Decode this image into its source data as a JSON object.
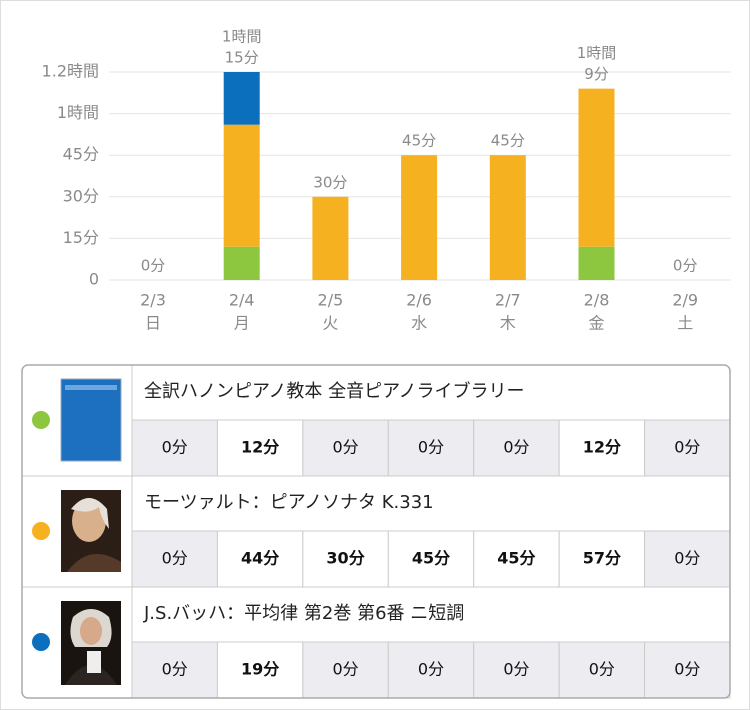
{
  "chart_data": {
    "type": "stacked_bar",
    "categories": [
      "2/3",
      "2/4",
      "2/5",
      "2/6",
      "2/7",
      "2/8",
      "2/9"
    ],
    "weekdays": [
      "日",
      "月",
      "火",
      "水",
      "木",
      "金",
      "土"
    ],
    "ylim": [
      0,
      75
    ],
    "yticks": [
      0,
      {
        "value": 15,
        "label": "15分"
      },
      {
        "value": 30,
        "label": "30分"
      },
      {
        "value": 45,
        "label": "45分"
      },
      {
        "value": 60,
        "label": "1時間"
      },
      {
        "value": 75,
        "label": "1.2時間"
      }
    ],
    "grid": true,
    "series": [
      {
        "name": "全訳ハノンピアノ教本  全音ピアノライブラリー",
        "color": "#8dc63f",
        "values": [
          0,
          12,
          0,
          0,
          0,
          12,
          0
        ],
        "value_labels": [
          "0分",
          "12分",
          "0分",
          "0分",
          "0分",
          "12分",
          "0分"
        ]
      },
      {
        "name": "モーツァルト：ピアノソナタ K.331",
        "color": "#f5b120",
        "values": [
          0,
          44,
          30,
          45,
          45,
          57,
          0
        ],
        "value_labels": [
          "0分",
          "44分",
          "30分",
          "45分",
          "45分",
          "57分",
          "0分"
        ]
      },
      {
        "name": "J.S.バッハ：平均律 第2巻 第6番 ニ短調",
        "color": "#0b6fbd",
        "values": [
          0,
          19,
          0,
          0,
          0,
          0,
          0
        ],
        "value_labels": [
          "0分",
          "19分",
          "0分",
          "0分",
          "0分",
          "0分",
          "0分"
        ]
      }
    ],
    "totals": {
      "values": [
        0,
        75,
        30,
        45,
        45,
        69,
        0
      ],
      "value_labels": [
        [
          "0分"
        ],
        [
          "1時間",
          "15分"
        ],
        [
          "30分"
        ],
        [
          "45分"
        ],
        [
          "45分"
        ],
        [
          "1時間",
          "9分"
        ],
        [
          "0分"
        ]
      ]
    }
  }
}
